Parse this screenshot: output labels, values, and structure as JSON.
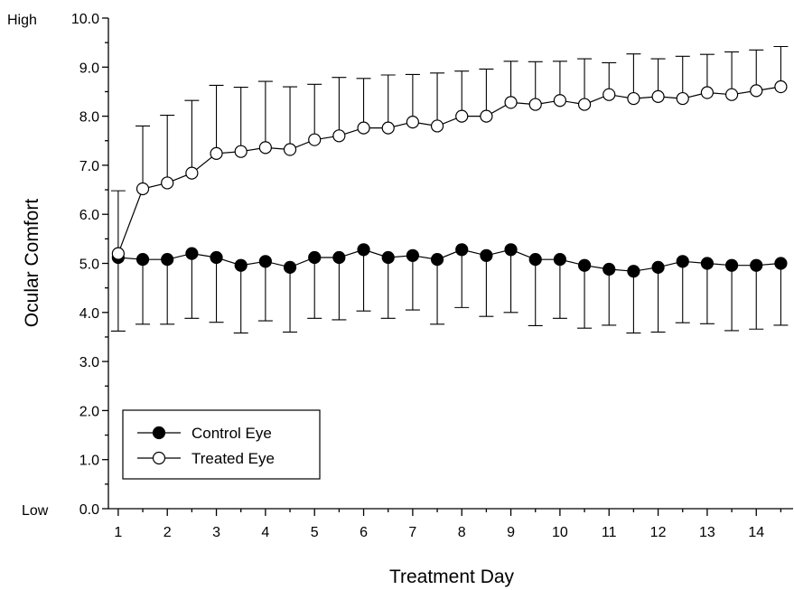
{
  "chart_data": {
    "type": "line",
    "xlabel": "Treatment Day",
    "ylabel": "Ocular Comfort",
    "xlim": [
      0.8,
      14.75
    ],
    "ylim": [
      0,
      10
    ],
    "xticks": [
      1,
      2,
      3,
      4,
      5,
      6,
      7,
      8,
      9,
      10,
      11,
      12,
      13,
      14
    ],
    "yticks": [
      "0.0",
      "1.0",
      "2.0",
      "3.0",
      "4.0",
      "5.0",
      "6.0",
      "7.0",
      "8.0",
      "9.0",
      "10.0"
    ],
    "y_end_labels": {
      "high": "High",
      "low": "Low"
    },
    "grid": false,
    "legend": "bottom-left",
    "x": [
      1,
      1.5,
      2,
      2.5,
      3,
      3.5,
      4,
      4.5,
      5,
      5.5,
      6,
      6.5,
      7,
      7.5,
      8,
      8.5,
      9,
      9.5,
      10,
      10.5,
      11,
      11.5,
      12,
      12.5,
      13,
      13.5,
      14,
      14.5
    ],
    "series": [
      {
        "name": "Control Eye",
        "marker": "filled-circle",
        "color": "#000000",
        "values": [
          5.12,
          5.08,
          5.08,
          5.2,
          5.12,
          4.96,
          5.04,
          4.92,
          5.12,
          5.12,
          5.28,
          5.12,
          5.16,
          5.08,
          5.28,
          5.16,
          5.28,
          5.08,
          5.08,
          4.96,
          4.88,
          4.84,
          4.92,
          5.04,
          5.0,
          4.96,
          4.96,
          5.0
        ],
        "error_lower": [
          3.62,
          3.76,
          3.76,
          3.88,
          3.8,
          3.58,
          3.83,
          3.6,
          3.88,
          3.85,
          4.03,
          3.88,
          4.05,
          3.76,
          4.1,
          3.92,
          4.0,
          3.73,
          3.88,
          3.68,
          3.74,
          3.58,
          3.6,
          3.79,
          3.77,
          3.63,
          3.66,
          3.74
        ]
      },
      {
        "name": "Treated Eye",
        "marker": "open-circle",
        "color": "#000000",
        "values": [
          5.2,
          6.52,
          6.64,
          6.84,
          7.24,
          7.28,
          7.36,
          7.32,
          7.52,
          7.6,
          7.76,
          7.76,
          7.88,
          7.8,
          8.0,
          8.0,
          8.28,
          8.24,
          8.32,
          8.24,
          8.44,
          8.36,
          8.4,
          8.36,
          8.48,
          8.44,
          8.52,
          8.6
        ],
        "error_upper": [
          6.48,
          7.8,
          8.02,
          8.32,
          8.63,
          8.59,
          8.71,
          8.6,
          8.65,
          8.79,
          8.77,
          8.84,
          8.85,
          8.88,
          8.92,
          8.96,
          9.12,
          9.11,
          9.12,
          9.17,
          9.09,
          9.27,
          9.17,
          9.22,
          9.26,
          9.31,
          9.35,
          9.42
        ]
      }
    ]
  }
}
